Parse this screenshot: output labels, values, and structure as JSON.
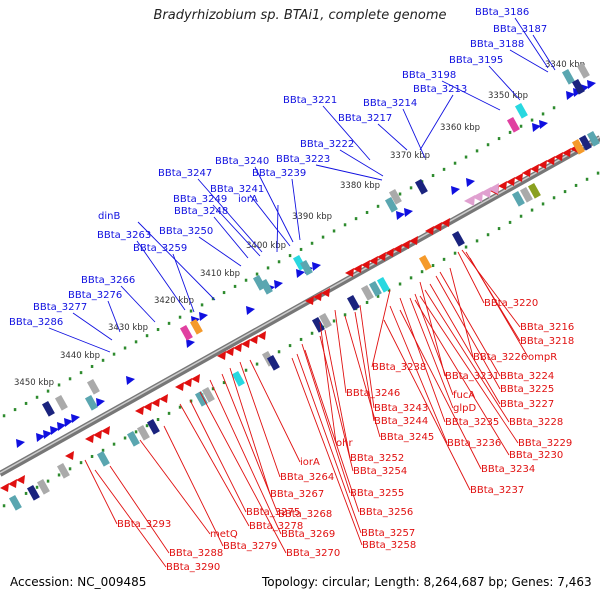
{
  "title": "Bradyrhizobium sp. BTAi1, complete genome",
  "accession": "Accession: NC_009485",
  "topology": "Topology: circular; Length: 8,264,687 bp; Genes: 7,463",
  "kbp_labels": [
    "3340 kbp",
    "3350 kbp",
    "3360 kbp",
    "3370 kbp",
    "3380 kbp",
    "3390 kbp",
    "3400 kbp",
    "3410 kbp",
    "3420 kbp",
    "3430 kbp",
    "3440 kbp",
    "3450 kbp"
  ],
  "forward_labels": [
    "BBta_3186",
    "BBta_3187",
    "BBta_3188",
    "BBta_3195",
    "BBta_3198",
    "BBta_3213",
    "BBta_3214",
    "BBta_3217",
    "BBta_3221",
    "BBta_3222",
    "BBta_3223",
    "BBta_3239",
    "BBta_3240",
    "BBta_3241",
    "iorA",
    "BBta_3247",
    "BBta_3249",
    "BBta_3248",
    "dinB",
    "BBta_3263",
    "BBta_3259",
    "BBta_3250",
    "BBta_3266",
    "BBta_3276",
    "BBta_3277",
    "BBta_3286"
  ],
  "reverse_labels": [
    "BBta_3220",
    "BBta_3216",
    "BBta_3218",
    "BBta_3226",
    "ompR",
    "BBta_3238",
    "BBta_3224",
    "BBta_3225",
    "BBta_3231",
    "BBta_3246",
    "BBta_3227",
    "fucA",
    "glpD",
    "BBta_3243",
    "BBta_3228",
    "BBta_3244",
    "BBta_3235",
    "BBta_3245",
    "BBta_3229",
    "BBta_3236",
    "BBta_3230",
    "ohr",
    "BBta_3252",
    "BBta_3234",
    "BBta_3254",
    "iorA",
    "BBta_3264",
    "BBta_3237",
    "BBta_3267",
    "BBta_3255",
    "BBta_3275",
    "BBta_3268",
    "BBta_3256",
    "BBta_3293",
    "BBta_3278",
    "metQ",
    "BBta_3269",
    "BBta_3257",
    "BBta_3279",
    "BBta_3288",
    "BBta_3270",
    "BBta_3258",
    "BBta_3290"
  ],
  "colors": {
    "forward": "#1010e0",
    "reverse": "#e01010",
    "dots": "#2e8b2e",
    "backbone": "#888888",
    "cyan": "#28d8e0",
    "navy": "#1a237e",
    "pink": "#e0a0d0",
    "orange": "#f59a2a",
    "magenta": "#e040a0",
    "gray": "#aaaaaa",
    "teal": "#5aa6b0",
    "olive": "#8aa020"
  }
}
